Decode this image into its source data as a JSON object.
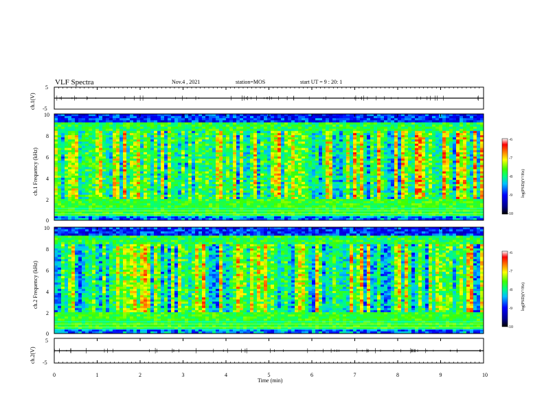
{
  "header": {
    "title": "VLF Spectra",
    "date": "Nov.4 , 2021",
    "station": "station=MOS",
    "start": "start UT =  9 : 20: 1"
  },
  "chart_data": [
    {
      "type": "line",
      "ylabel": "ch.1(V)",
      "ylim": [
        -5,
        5
      ],
      "yticks": [
        "5",
        "-5"
      ],
      "description_series": "near-constant trace around 0 V with small spikes",
      "x": [
        0,
        1,
        2,
        3,
        4,
        5,
        6,
        7,
        8,
        9,
        10
      ],
      "values": [
        0,
        0,
        0,
        0,
        0,
        0,
        0,
        0,
        0,
        0,
        0
      ]
    },
    {
      "type": "heatmap",
      "ylabel": "ch.1 Frequency (kHz)",
      "ylim": [
        0,
        10
      ],
      "yticks": [
        "0",
        "2",
        "4",
        "6",
        "8",
        "10"
      ],
      "xlim": [
        0,
        10
      ],
      "colorbar": {
        "label": "log(PSD)(V²/Hz)",
        "range": [
          -10,
          -6
        ],
        "ticks": [
          "-6",
          "-7",
          "-8",
          "-9",
          "-10"
        ]
      }
    },
    {
      "type": "heatmap",
      "ylabel": "ch.2 Frequency (kHz)",
      "ylim": [
        0,
        10
      ],
      "yticks": [
        "0",
        "2",
        "4",
        "6",
        "8",
        "10"
      ],
      "xlim": [
        0,
        10
      ],
      "colorbar": {
        "label": "log(PSD)(V²/Hz)",
        "range": [
          -10,
          -6
        ],
        "ticks": [
          "-6",
          "-7",
          "-8",
          "-9",
          "-10"
        ]
      }
    },
    {
      "type": "line",
      "ylabel": "ch.2(V)",
      "ylim": [
        -5,
        5
      ],
      "yticks": [
        "5",
        "-5"
      ],
      "x": [
        0,
        1,
        2,
        3,
        4,
        5,
        6,
        7,
        8,
        9,
        10
      ],
      "values": [
        0,
        0,
        0,
        0,
        0,
        0,
        0,
        0,
        0,
        0,
        0
      ]
    }
  ],
  "x_axis": {
    "label": "Time (min)",
    "ticks": [
      "0",
      "1",
      "2",
      "3",
      "4",
      "5",
      "6",
      "7",
      "8",
      "9",
      "10"
    ],
    "xlim": [
      0,
      10
    ]
  },
  "colors": {
    "colormap": [
      "#000080",
      "#0000ff",
      "#00ffff",
      "#00ff00",
      "#ffff00",
      "#ff8000",
      "#ff0000",
      "#ffffff"
    ]
  }
}
